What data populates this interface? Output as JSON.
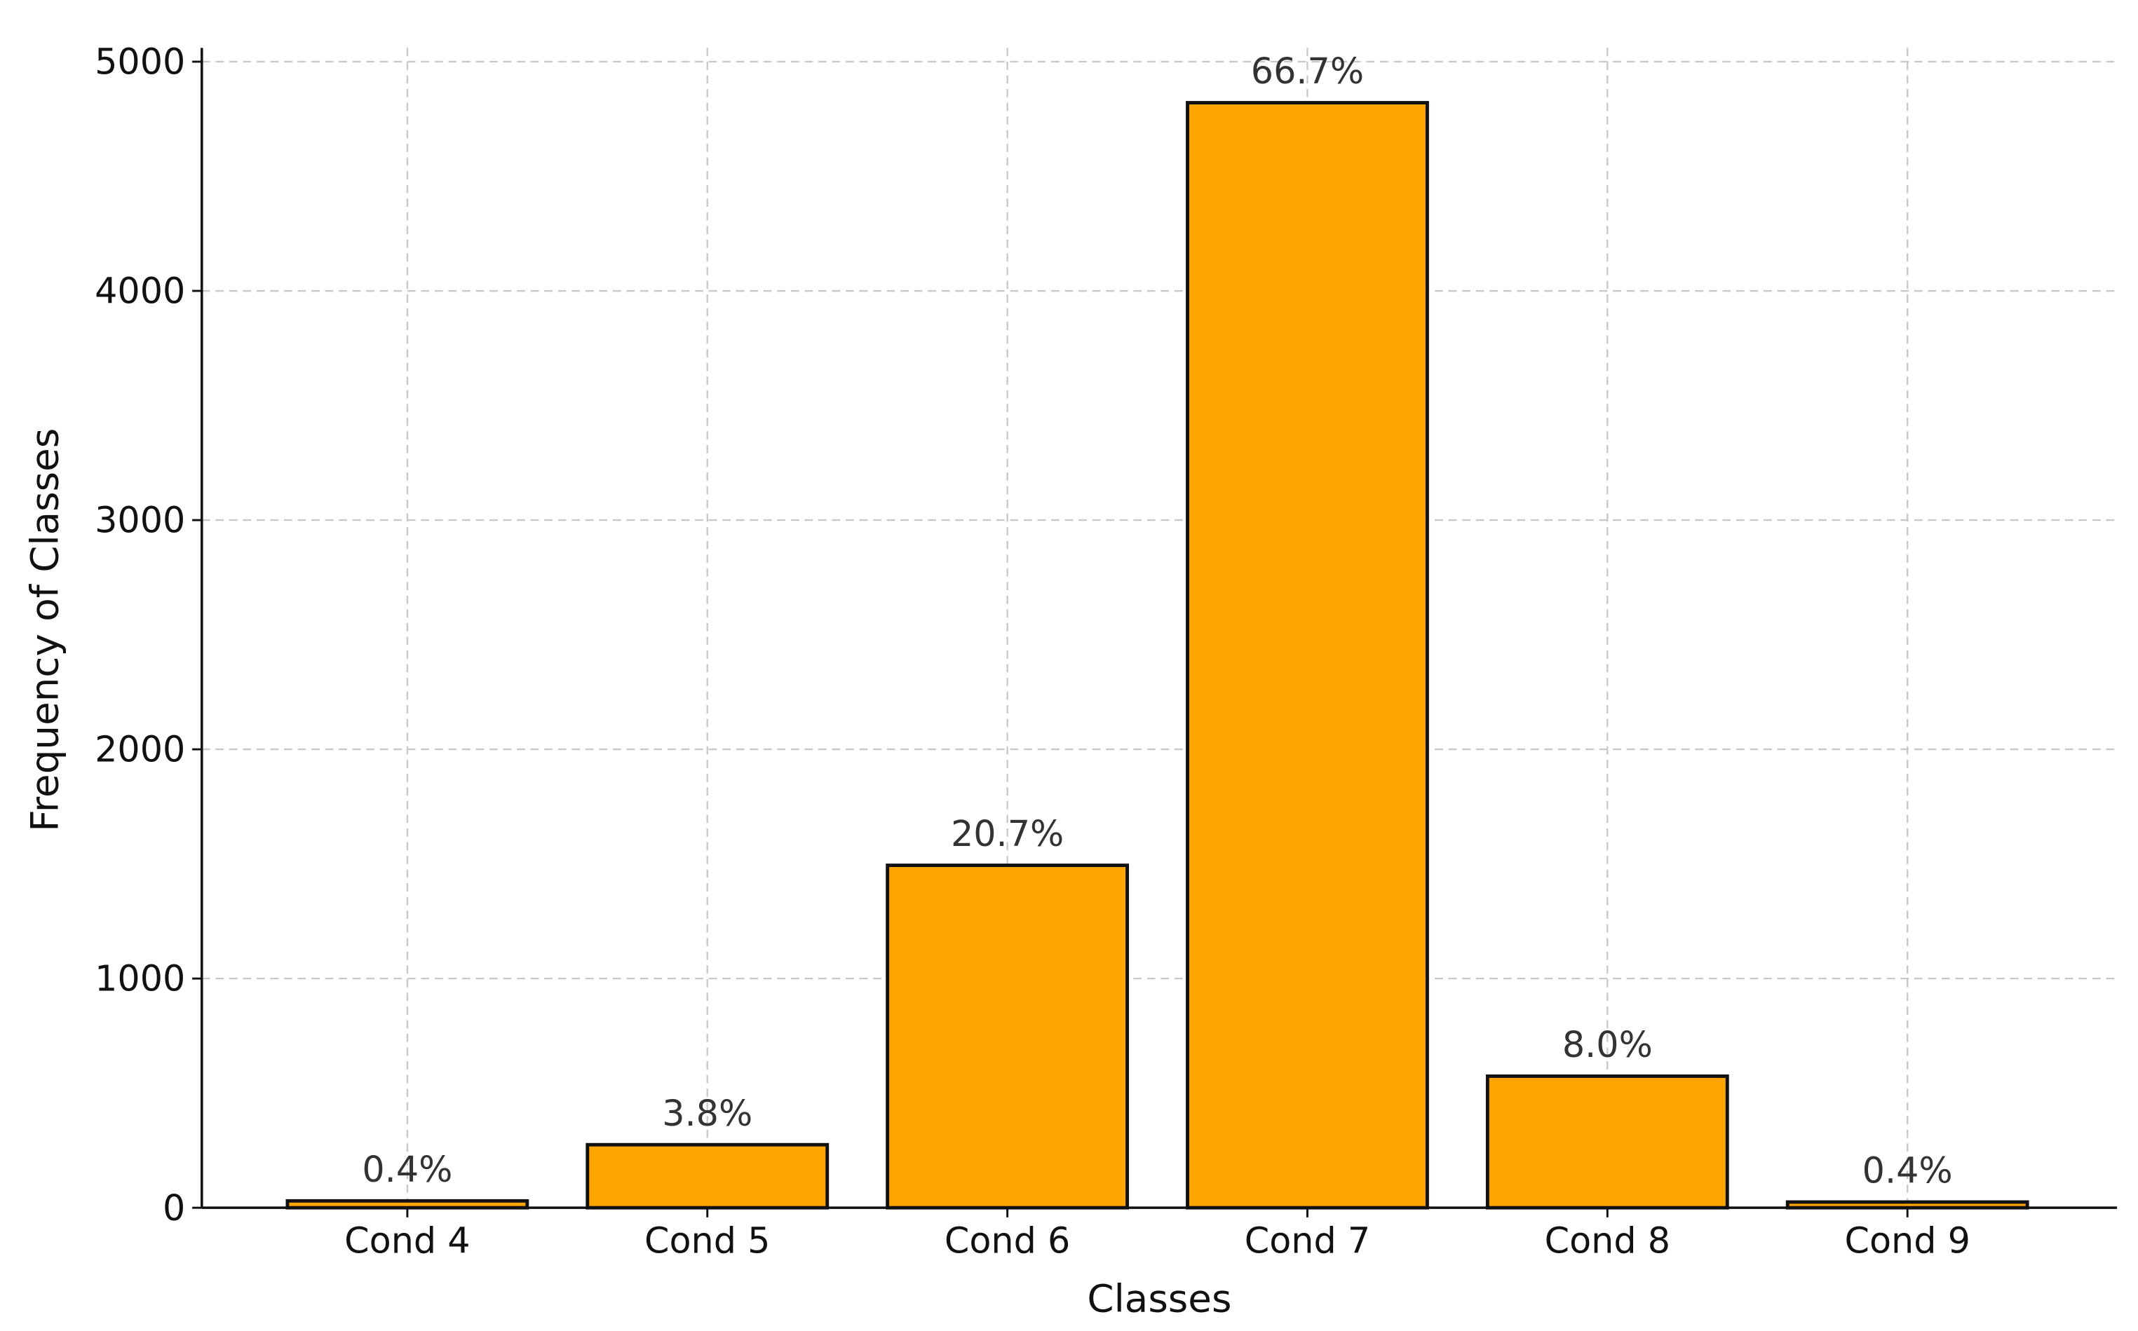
{
  "chart_data": {
    "type": "bar",
    "x_label": "Classes",
    "y_label": "Frequency of Classes",
    "categories": [
      "Cond 4",
      "Cond 5",
      "Cond 6",
      "Cond 7",
      "Cond 8",
      "Cond 9"
    ],
    "values": [
      30,
      275,
      1494,
      4821,
      574,
      25
    ],
    "annotations": [
      "0.4%",
      "3.8%",
      "20.7%",
      "66.7%",
      "8.0%",
      "0.4%"
    ],
    "color": "#ffa500",
    "ylim": [
      0,
      5060
    ],
    "yticks": [
      0,
      1000,
      2000,
      3000,
      4000,
      5000
    ],
    "grid": true
  }
}
